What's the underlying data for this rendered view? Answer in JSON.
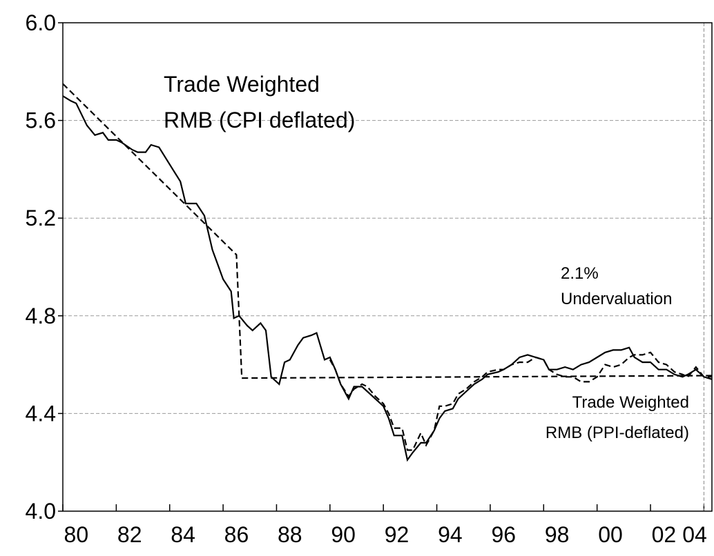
{
  "chart_data": {
    "type": "line",
    "xlim": [
      1980,
      2004.3
    ],
    "ylim": [
      4.0,
      6.0
    ],
    "yticks": [
      {
        "value": 4.0,
        "label": "4.0"
      },
      {
        "value": 4.4,
        "label": "4.4"
      },
      {
        "value": 4.8,
        "label": "4.8"
      },
      {
        "value": 5.2,
        "label": "5.2"
      },
      {
        "value": 5.6,
        "label": "5.6"
      },
      {
        "value": 6.0,
        "label": "6.0"
      }
    ],
    "xticks": [
      {
        "value": 1980,
        "label": "80"
      },
      {
        "value": 1982,
        "label": "82"
      },
      {
        "value": 1984,
        "label": "84"
      },
      {
        "value": 1986,
        "label": "86"
      },
      {
        "value": 1988,
        "label": "88"
      },
      {
        "value": 1990,
        "label": "90"
      },
      {
        "value": 1992,
        "label": "92"
      },
      {
        "value": 1994,
        "label": "94"
      },
      {
        "value": 1996,
        "label": "96"
      },
      {
        "value": 1998,
        "label": "98"
      },
      {
        "value": 2000,
        "label": "00"
      },
      {
        "value": 2002,
        "label": "02"
      },
      {
        "value": 2004,
        "label": "04"
      }
    ],
    "grid": true,
    "marker_x": 2004.0,
    "annotations": [
      {
        "lines": [
          "Trade Weighted",
          "RMB (CPI deflated)"
        ]
      },
      {
        "lines": [
          "2.1%",
          "Undervaluation"
        ]
      },
      {
        "lines": [
          "Trade Weighted",
          "RMB (PPI-deflated)"
        ]
      }
    ],
    "series": [
      {
        "color": "#000000",
        "dash": false,
        "x": [
          1980.0,
          1980.3,
          1980.5,
          1980.9,
          1981.2,
          1981.5,
          1981.7,
          1982.0,
          1982.2,
          1982.6,
          1982.8,
          1983.1,
          1983.3,
          1983.6,
          1984.0,
          1984.4,
          1984.6,
          1985.0,
          1985.3,
          1985.6,
          1985.8,
          1986.0,
          1986.3,
          1986.4,
          1986.6,
          1986.9,
          1987.1,
          1987.4,
          1987.6,
          1987.8,
          1988.1,
          1988.3,
          1988.5,
          1988.8,
          1989.0,
          1989.3,
          1989.5,
          1989.8,
          1990.0,
          1990.2,
          1990.4,
          1990.7,
          1990.9,
          1991.2,
          1991.4,
          1991.7,
          1992.0,
          1992.2,
          1992.4,
          1992.7,
          1992.9,
          1993.1,
          1993.4,
          1993.6,
          1993.9,
          1994.1,
          1994.3,
          1994.6,
          1994.8,
          1995.1,
          1995.4,
          1995.7,
          1995.9,
          1996.3,
          1996.5,
          1996.8,
          1997.1,
          1997.4,
          1997.7,
          1998.0,
          1998.2,
          1998.5,
          1998.8,
          1999.1,
          1999.4,
          1999.7,
          2000.0,
          2000.3,
          2000.6,
          2000.9,
          2001.2,
          2001.4,
          2001.7,
          2002.0,
          2002.3,
          2002.6,
          2002.9,
          2003.2,
          2003.4,
          2003.7,
          2004.0,
          2004.3
        ],
        "values": [
          5.7,
          5.68,
          5.67,
          5.58,
          5.54,
          5.55,
          5.52,
          5.52,
          5.51,
          5.48,
          5.47,
          5.47,
          5.5,
          5.49,
          5.42,
          5.35,
          5.26,
          5.26,
          5.21,
          5.07,
          5.01,
          4.95,
          4.9,
          4.79,
          4.8,
          4.76,
          4.74,
          4.77,
          4.74,
          4.55,
          4.52,
          4.61,
          4.62,
          4.68,
          4.71,
          4.72,
          4.73,
          4.62,
          4.63,
          4.58,
          4.52,
          4.46,
          4.51,
          4.51,
          4.49,
          4.46,
          4.43,
          4.38,
          4.31,
          4.31,
          4.21,
          4.24,
          4.28,
          4.28,
          4.33,
          4.38,
          4.41,
          4.42,
          4.46,
          4.49,
          4.52,
          4.54,
          4.56,
          4.57,
          4.58,
          4.6,
          4.63,
          4.64,
          4.63,
          4.62,
          4.58,
          4.58,
          4.59,
          4.58,
          4.6,
          4.61,
          4.63,
          4.65,
          4.66,
          4.66,
          4.67,
          4.63,
          4.61,
          4.61,
          4.58,
          4.58,
          4.56,
          4.55,
          4.56,
          4.58,
          4.55,
          4.54
        ]
      },
      {
        "color": "#000000",
        "dash": true,
        "x": [
          1990.0,
          1990.2,
          1990.4,
          1990.7,
          1990.9,
          1991.2,
          1991.4,
          1991.7,
          1992.0,
          1992.2,
          1992.4,
          1992.7,
          1992.9,
          1993.1,
          1993.4,
          1993.6,
          1993.9,
          1994.1,
          1994.3,
          1994.6,
          1994.8,
          1995.1,
          1995.4,
          1995.7,
          1995.9,
          1996.3,
          1996.5,
          1996.8,
          1997.1,
          1997.4,
          1997.7,
          1998.0,
          1998.2,
          1998.5,
          1998.8,
          1999.1,
          1999.4,
          1999.7,
          2000.0,
          2000.3,
          2000.6,
          2000.9,
          2001.2,
          2001.4,
          2001.7,
          2002.0,
          2002.3,
          2002.6,
          2002.9,
          2003.2,
          2003.4,
          2003.7,
          2004.0,
          2004.3
        ],
        "values": [
          4.62,
          4.58,
          4.52,
          4.47,
          4.5,
          4.52,
          4.51,
          4.47,
          4.44,
          4.4,
          4.34,
          4.34,
          4.25,
          4.25,
          4.32,
          4.27,
          4.33,
          4.43,
          4.43,
          4.44,
          4.48,
          4.5,
          4.53,
          4.55,
          4.57,
          4.58,
          4.58,
          4.6,
          4.61,
          4.61,
          4.63,
          4.62,
          4.58,
          4.56,
          4.55,
          4.55,
          4.53,
          4.53,
          4.55,
          4.6,
          4.59,
          4.6,
          4.63,
          4.64,
          4.64,
          4.65,
          4.61,
          4.6,
          4.57,
          4.56,
          4.55,
          4.59,
          4.55,
          4.55
        ]
      },
      {
        "color": "#000000",
        "dash": true,
        "x": [
          1980.0,
          1986.5,
          1986.7,
          2004.3
        ],
        "values": [
          5.75,
          5.05,
          4.545,
          4.555
        ]
      }
    ]
  }
}
